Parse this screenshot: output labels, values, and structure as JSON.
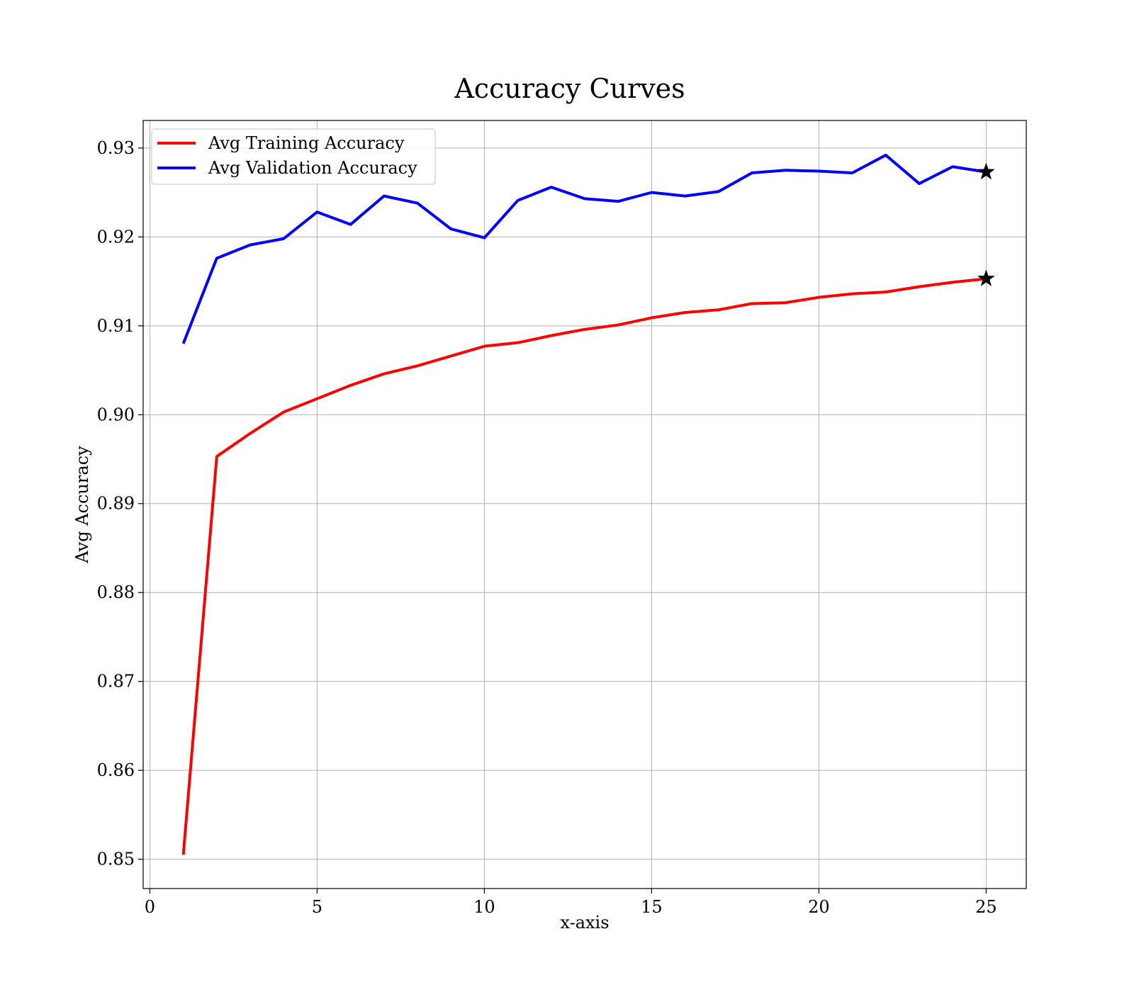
{
  "chart_data": {
    "type": "line",
    "title": "Accuracy Curves",
    "xlabel": "x-axis",
    "ylabel": "Avg Accuracy",
    "xlim": [
      -0.2,
      26.2
    ],
    "ylim": [
      0.8467,
      0.9331
    ],
    "xticks": [
      0,
      5,
      10,
      15,
      20,
      25
    ],
    "xtick_labels": [
      "0",
      "5",
      "10",
      "15",
      "20",
      "25"
    ],
    "yticks": [
      0.85,
      0.86,
      0.87,
      0.88,
      0.89,
      0.9,
      0.91,
      0.92,
      0.93
    ],
    "ytick_labels": [
      "0.85",
      "0.86",
      "0.87",
      "0.88",
      "0.89",
      "0.90",
      "0.91",
      "0.92",
      "0.93"
    ],
    "grid": true,
    "legend_position": "top-left",
    "x": [
      1,
      2,
      3,
      4,
      5,
      6,
      7,
      8,
      9,
      10,
      11,
      12,
      13,
      14,
      15,
      16,
      17,
      18,
      19,
      20,
      21,
      22,
      23,
      24,
      25
    ],
    "series": [
      {
        "name": "Avg Training Accuracy",
        "color": "#ff0000",
        "values": [
          0.8505,
          0.8953,
          0.8979,
          0.9003,
          0.9018,
          0.9033,
          0.9046,
          0.9055,
          0.9066,
          0.9077,
          0.9081,
          0.9089,
          0.9096,
          0.9101,
          0.9109,
          0.9115,
          0.9118,
          0.9125,
          0.9126,
          0.9132,
          0.9136,
          0.9138,
          0.9144,
          0.9149,
          0.9153
        ]
      },
      {
        "name": "Avg Validation Accuracy",
        "color": "#0000ff",
        "values": [
          0.908,
          0.9176,
          0.9191,
          0.9198,
          0.9228,
          0.9214,
          0.9246,
          0.9238,
          0.9209,
          0.9199,
          0.9241,
          0.9256,
          0.9243,
          0.924,
          0.925,
          0.9246,
          0.9251,
          0.9272,
          0.9275,
          0.9274,
          0.9272,
          0.9292,
          0.926,
          0.9279,
          0.9273
        ]
      }
    ],
    "markers": [
      {
        "x": 25,
        "y": 0.9153,
        "shape": "star",
        "color": "#000000"
      },
      {
        "x": 25,
        "y": 0.9273,
        "shape": "star",
        "color": "#000000"
      }
    ]
  }
}
